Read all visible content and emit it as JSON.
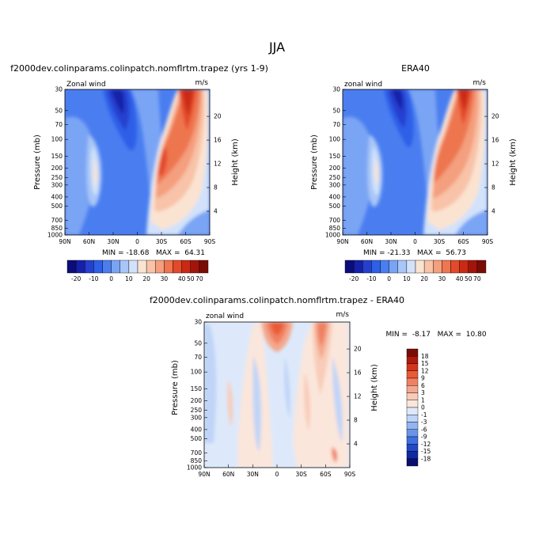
{
  "figure": {
    "title": "JJA"
  },
  "chart_data": [
    {
      "type": "heatmap",
      "title": "f2000dev.colinparams.colinpatch.nomflrtm.trapez (yrs 1-9)",
      "field_label": "Zonal wind",
      "units": "m/s",
      "ylabel": "Pressure (mb)",
      "y2label": "Height (km)",
      "x_ticks": [
        "90N",
        "60N",
        "30N",
        "0",
        "30S",
        "60S",
        "90S"
      ],
      "y_ticks": [
        "30",
        "50",
        "70",
        "100",
        "150",
        "200",
        "250",
        "300",
        "400",
        "500",
        "700",
        "850",
        "1000"
      ],
      "y2_ticks": [
        "20",
        "16",
        "12",
        "8",
        "4"
      ],
      "stats_text": "MIN = -18.68   MAX =  64.31",
      "min": -18.68,
      "max": 64.31,
      "colorbar_labels": [
        "-20",
        "-10",
        "0",
        "10",
        "20",
        "30",
        "40",
        "50",
        "70"
      ]
    },
    {
      "type": "heatmap",
      "title": "ERA40",
      "field_label": "zonal wind",
      "units": "m/s",
      "ylabel": "Pressure (mb)",
      "y2label": "Height (km)",
      "x_ticks": [
        "90N",
        "60N",
        "30N",
        "0",
        "30S",
        "60S",
        "90S"
      ],
      "y_ticks": [
        "30",
        "50",
        "70",
        "100",
        "150",
        "200",
        "250",
        "300",
        "400",
        "500",
        "700",
        "850",
        "1000"
      ],
      "y2_ticks": [
        "20",
        "16",
        "12",
        "8",
        "4"
      ],
      "stats_text": "MIN = -21.33   MAX =  56.73",
      "min": -21.33,
      "max": 56.73,
      "colorbar_labels": [
        "-20",
        "-10",
        "0",
        "10",
        "20",
        "30",
        "40",
        "50",
        "70"
      ]
    },
    {
      "type": "heatmap",
      "title": "f2000dev.colinparams.colinpatch.nomflrtm.trapez - ERA40",
      "field_label": "zonal wind",
      "units": "m/s",
      "ylabel": "Pressure (mb)",
      "y2label": "Height (km)",
      "x_ticks": [
        "90N",
        "60N",
        "30N",
        "0",
        "30S",
        "60S",
        "90S"
      ],
      "y_ticks": [
        "30",
        "50",
        "70",
        "100",
        "150",
        "200",
        "250",
        "300",
        "400",
        "500",
        "700",
        "850",
        "1000"
      ],
      "y2_ticks": [
        "20",
        "16",
        "12",
        "8",
        "4"
      ],
      "stats_text": "MIN =  -8.17   MAX =  10.80",
      "min": -8.17,
      "max": 10.8,
      "colorbar_labels": [
        "18",
        "15",
        "12",
        "9",
        "6",
        "3",
        "1",
        "0",
        "-1",
        "-3",
        "-6",
        "-9",
        "-12",
        "-15",
        "-18"
      ]
    }
  ],
  "palettes": {
    "full": [
      "#0c0d7a",
      "#1620a8",
      "#2540cf",
      "#2e5fe8",
      "#4a7ef0",
      "#7aa4f4",
      "#a8c6f7",
      "#d2e2fa",
      "#fbe3d2",
      "#f8c3a8",
      "#f49f7e",
      "#ee7650",
      "#e34a2a",
      "#c92a14",
      "#a3150b",
      "#7a0c06"
    ],
    "diff": [
      "#7a0c06",
      "#b01a0d",
      "#d3351c",
      "#ea5a35",
      "#f08062",
      "#f4a88d",
      "#f8ccb8",
      "#fbe6db",
      "#dde9fb",
      "#bfd4f7",
      "#94b5f1",
      "#6a94ea",
      "#3f6fe0",
      "#2149c8",
      "#102aa0",
      "#0b0e70"
    ]
  }
}
